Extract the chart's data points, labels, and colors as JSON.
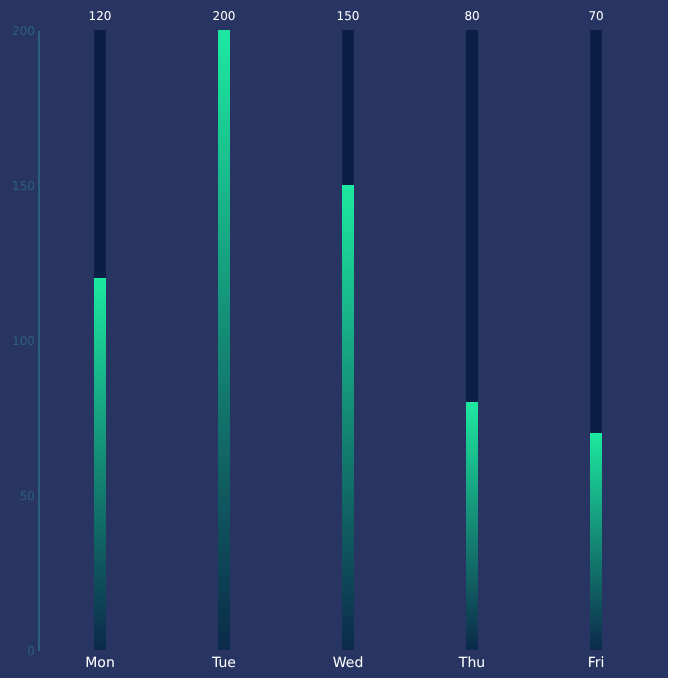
{
  "chart_data": {
    "type": "bar",
    "stacked": true,
    "categories": [
      "Mon",
      "Tue",
      "Wed",
      "Thu",
      "Fri"
    ],
    "series": [
      {
        "color": "#1de9a0",
        "values": [
          120,
          200,
          150,
          80,
          70
        ]
      },
      {
        "color": "#0b1f45",
        "values": [
          80,
          0,
          50,
          120,
          130
        ]
      }
    ],
    "annotations": [
      {
        "text": "120",
        "x": "Mon",
        "y": 200
      },
      {
        "text": "200",
        "x": "Tue",
        "y": 200
      },
      {
        "text": "150",
        "x": "Wed",
        "y": 200
      },
      {
        "text": "80",
        "x": "Thu",
        "y": 200
      },
      {
        "text": "70",
        "x": "Fri",
        "y": 200
      }
    ],
    "ylim": [
      0,
      200
    ],
    "yticks": [
      0,
      50,
      100,
      150,
      200
    ],
    "grid": false
  }
}
